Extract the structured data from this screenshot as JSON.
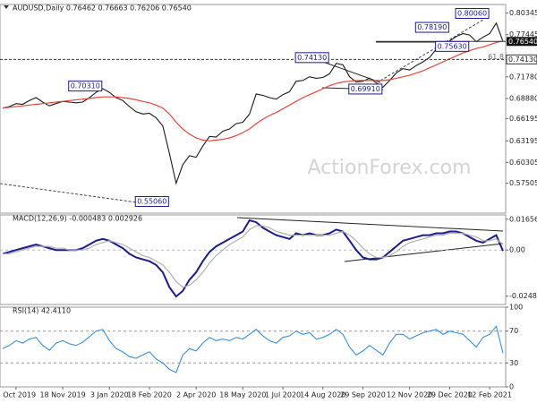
{
  "chart_data": [
    {
      "type": "line",
      "title": "AUDUSD,Daily  0.76462 0.76663 0.76206 0.76540",
      "watermark": "ActionForex.com",
      "ylim": [
        0.535,
        0.815
      ],
      "yticks": [
        0.80345,
        0.77445,
        {
          "value": 0.7178,
          "label": "0.71780"
        },
        {
          "value": 0.6888,
          "label": "0.68880"
        },
        0.66195,
        0.63195,
        0.60305,
        0.57505
      ],
      "series": [
        {
          "color": "#1a1a1a",
          "values": [
            0.676,
            0.678,
            0.682,
            0.681,
            0.686,
            0.69,
            0.684,
            0.679,
            0.682,
            0.685,
            0.684,
            0.683,
            0.684,
            0.69,
            0.697,
            0.702,
            0.697,
            0.69,
            0.686,
            0.678,
            0.671,
            0.668,
            0.669,
            0.663,
            0.652,
            0.615,
            0.575,
            0.6,
            0.612,
            0.61,
            0.625,
            0.638,
            0.637,
            0.645,
            0.648,
            0.655,
            0.657,
            0.668,
            0.695,
            0.693,
            0.69,
            0.688,
            0.694,
            0.698,
            0.712,
            0.713,
            0.718,
            0.716,
            0.717,
            0.722,
            0.736,
            0.734,
            0.718,
            0.711,
            0.712,
            0.716,
            0.71,
            0.704,
            0.713,
            0.723,
            0.729,
            0.727,
            0.733,
            0.738,
            0.744,
            0.755,
            0.758,
            0.766,
            0.772,
            0.776,
            0.774,
            0.765,
            0.771,
            0.776,
            0.79,
            0.7654
          ]
        },
        {
          "color": "#e8463a",
          "values": [
            0.676,
            0.677,
            0.678,
            0.679,
            0.68,
            0.681,
            0.682,
            0.683,
            0.684,
            0.685,
            0.686,
            0.687,
            0.688,
            0.689,
            0.69,
            0.691,
            0.691,
            0.691,
            0.69,
            0.689,
            0.687,
            0.685,
            0.683,
            0.68,
            0.676,
            0.668,
            0.657,
            0.648,
            0.641,
            0.636,
            0.633,
            0.632,
            0.633,
            0.634,
            0.636,
            0.639,
            0.643,
            0.648,
            0.655,
            0.661,
            0.666,
            0.67,
            0.675,
            0.68,
            0.685,
            0.69,
            0.694,
            0.698,
            0.702,
            0.706,
            0.709,
            0.711,
            0.712,
            0.713,
            0.713,
            0.713,
            0.713,
            0.713,
            0.714,
            0.716,
            0.718,
            0.72,
            0.723,
            0.726,
            0.73,
            0.734,
            0.738,
            0.742,
            0.746,
            0.75,
            0.753,
            0.756,
            0.758,
            0.761,
            0.764,
            0.766
          ]
        }
      ],
      "last_price": {
        "value": 0.7654,
        "label": "0.76540"
      },
      "fib_label": "61.8",
      "annotations": [
        {
          "label": "0.80060",
          "value": 0.8006,
          "index": 73
        },
        {
          "label": "0.78190",
          "value": 0.7819,
          "index": 67
        },
        {
          "label": "0.75630",
          "value": 0.7563,
          "index": 70
        },
        {
          "label": "0.74130",
          "value": 0.7413,
          "index": 49,
          "line": true
        },
        {
          "label": "0.70310",
          "value": 0.7031,
          "index": 15
        },
        {
          "label": "0.69910",
          "value": 0.6991,
          "index": 57
        },
        {
          "label": "0.55060",
          "value": 0.5506,
          "index": 25
        }
      ]
    },
    {
      "type": "line",
      "title": "MACD(12,26,9) -0.000483 0.002926",
      "ylim": [
        -0.0293,
        0.0189
      ],
      "yticks": [
        0.016567,
        {
          "value": 0,
          "label": "0.00"
        },
        -0.02484
      ],
      "series": [
        {
          "color": "#1c1c8c",
          "values": [
            -0.002,
            -0.001,
            0.0,
            0.001,
            0.002,
            0.003,
            0.002,
            0.001,
            0.0,
            0.0,
            0.0,
            0.0,
            0.001,
            0.003,
            0.005,
            0.006,
            0.005,
            0.003,
            0.001,
            -0.002,
            -0.004,
            -0.005,
            -0.006,
            -0.008,
            -0.012,
            -0.02,
            -0.025,
            -0.022,
            -0.016,
            -0.012,
            -0.006,
            -0.001,
            0.002,
            0.004,
            0.006,
            0.008,
            0.01,
            0.016,
            0.015,
            0.012,
            0.01,
            0.008,
            0.007,
            0.006,
            0.009,
            0.008,
            0.009,
            0.008,
            0.008,
            0.009,
            0.011,
            0.01,
            0.005,
            0.0,
            -0.004,
            -0.005,
            -0.005,
            -0.004,
            -0.001,
            0.002,
            0.005,
            0.006,
            0.007,
            0.008,
            0.008,
            0.009,
            0.009,
            0.01,
            0.01,
            0.009,
            0.007,
            0.005,
            0.004,
            0.006,
            0.008,
            -0.0005
          ]
        },
        {
          "color": "#b0b0b0",
          "values": [
            -0.002,
            -0.002,
            -0.001,
            0.0,
            0.001,
            0.002,
            0.002,
            0.002,
            0.001,
            0.001,
            0.0,
            0.0,
            0.0,
            0.001,
            0.003,
            0.004,
            0.005,
            0.004,
            0.003,
            0.001,
            -0.001,
            -0.003,
            -0.004,
            -0.006,
            -0.008,
            -0.012,
            -0.017,
            -0.02,
            -0.019,
            -0.016,
            -0.012,
            -0.007,
            -0.003,
            0.0,
            0.003,
            0.005,
            0.007,
            0.011,
            0.013,
            0.013,
            0.012,
            0.01,
            0.009,
            0.008,
            0.008,
            0.008,
            0.008,
            0.008,
            0.008,
            0.008,
            0.009,
            0.01,
            0.008,
            0.005,
            0.001,
            -0.002,
            -0.004,
            -0.004,
            -0.003,
            -0.001,
            0.002,
            0.004,
            0.005,
            0.006,
            0.007,
            0.008,
            0.008,
            0.009,
            0.009,
            0.009,
            0.008,
            0.007,
            0.005,
            0.005,
            0.006,
            0.003
          ]
        }
      ]
    },
    {
      "type": "line",
      "title": "RSI(14) 42.4110",
      "ylim": [
        0,
        100
      ],
      "yticks": [
        100,
        70,
        30,
        0
      ],
      "levels": [
        70,
        30
      ],
      "categories": [
        null,
        null,
        "3 Oct 2019",
        null,
        null,
        null,
        null,
        null,
        null,
        "18 Nov 2019",
        null,
        null,
        null,
        null,
        null,
        null,
        "3 Jan 2020",
        null,
        null,
        null,
        null,
        null,
        "18 Feb 2020",
        null,
        null,
        null,
        null,
        null,
        null,
        "2 Apr 2020",
        null,
        null,
        null,
        null,
        null,
        null,
        "18 May 2020",
        null,
        null,
        null,
        null,
        null,
        "1 Jul 2020",
        null,
        null,
        null,
        null,
        null,
        "14 Aug 2020",
        null,
        null,
        null,
        null,
        null,
        "29 Sep 2020",
        null,
        null,
        null,
        null,
        null,
        null,
        "12 Nov 2020",
        null,
        null,
        null,
        null,
        null,
        "29 Dec 2020",
        null,
        null,
        null,
        null,
        null,
        "12 Feb 2021",
        null,
        null
      ],
      "series": [
        {
          "color": "#3a8fd8",
          "values": [
            48,
            52,
            58,
            55,
            60,
            62,
            52,
            46,
            55,
            58,
            54,
            52,
            56,
            63,
            70,
            72,
            58,
            48,
            44,
            38,
            36,
            40,
            44,
            35,
            30,
            22,
            18,
            40,
            48,
            45,
            55,
            62,
            58,
            60,
            58,
            62,
            60,
            66,
            72,
            64,
            58,
            55,
            62,
            64,
            70,
            66,
            68,
            60,
            62,
            66,
            72,
            66,
            50,
            40,
            45,
            52,
            46,
            40,
            55,
            66,
            66,
            60,
            64,
            68,
            70,
            72,
            66,
            70,
            68,
            66,
            58,
            50,
            62,
            66,
            76,
            42.4
          ]
        }
      ]
    }
  ]
}
